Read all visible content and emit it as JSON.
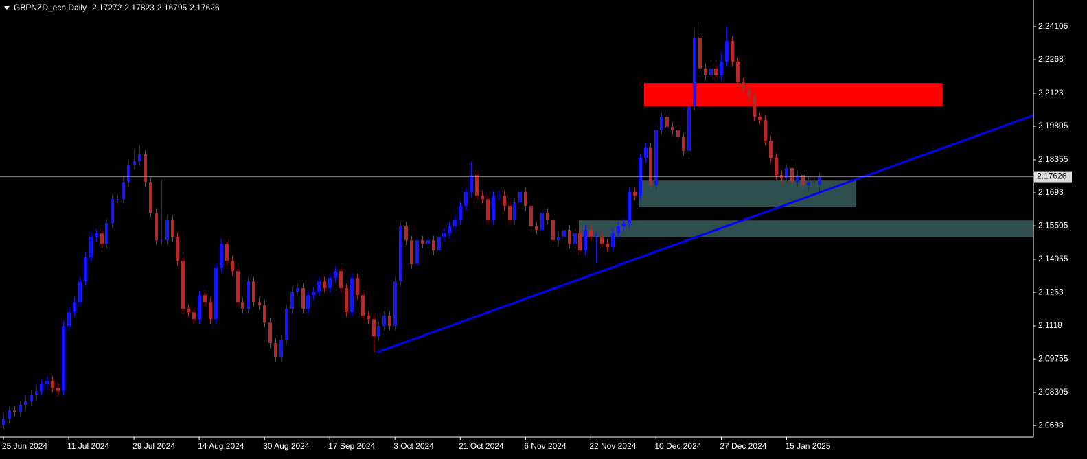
{
  "chart_data": {
    "type": "candlestick",
    "symbol": "GBPNZD_ecn,Daily",
    "up_color": "#1414ff",
    "down_color": "#b22a2a",
    "price_line_color": "#778899",
    "categories": [
      "25 Jun 2024",
      null,
      null,
      null,
      null,
      null,
      null,
      null,
      null,
      null,
      null,
      null,
      "11 Jul 2024",
      null,
      null,
      null,
      null,
      null,
      null,
      null,
      null,
      null,
      null,
      null,
      "29 Jul 2024",
      null,
      null,
      null,
      null,
      null,
      null,
      null,
      null,
      null,
      null,
      null,
      "14 Aug 2024",
      null,
      null,
      null,
      null,
      null,
      null,
      null,
      null,
      null,
      null,
      null,
      "30 Aug 2024",
      null,
      null,
      null,
      null,
      null,
      null,
      null,
      null,
      null,
      null,
      null,
      "17 Sep 2024",
      null,
      null,
      null,
      null,
      null,
      null,
      null,
      null,
      null,
      null,
      null,
      "3 Oct 2024",
      null,
      null,
      null,
      null,
      null,
      null,
      null,
      null,
      null,
      null,
      null,
      "21 Oct 2024",
      null,
      null,
      null,
      null,
      null,
      null,
      null,
      null,
      null,
      null,
      null,
      "6 Nov 2024",
      null,
      null,
      null,
      null,
      null,
      null,
      null,
      null,
      null,
      null,
      null,
      "22 Nov 2024",
      null,
      null,
      null,
      null,
      null,
      null,
      null,
      null,
      null,
      null,
      null,
      "10 Dec 2024",
      null,
      null,
      null,
      null,
      null,
      null,
      null,
      null,
      null,
      null,
      null,
      "27 Dec 2024",
      null,
      null,
      null,
      null,
      null,
      null,
      null,
      null,
      null,
      null,
      null,
      "15 Jan 2025",
      null,
      null,
      null,
      null,
      null,
      null
    ],
    "open": [
      2.069,
      2.0717,
      2.0753,
      2.0747,
      2.0777,
      2.0792,
      2.0821,
      2.0836,
      2.0866,
      2.088,
      2.0851,
      2.0836,
      2.1118,
      2.1177,
      2.1221,
      2.131,
      2.1414,
      2.1503,
      2.1518,
      2.1473,
      2.1562,
      2.1666,
      2.1666,
      2.174,
      2.1814,
      2.1829,
      2.1859,
      2.174,
      2.1607,
      2.1488,
      2.1488,
      2.1577,
      2.1503,
      2.1399,
      2.1192,
      2.1177,
      2.1147,
      2.1251,
      2.1221,
      2.1147,
      2.137,
      2.1473,
      2.1399,
      2.1355,
      2.1221,
      2.1192,
      2.131,
      2.1221,
      2.1207,
      2.1132,
      2.1044,
      2.0984,
      2.1058,
      2.1192,
      2.1266,
      2.1281,
      2.1192,
      2.1251,
      2.1266,
      2.131,
      2.1281,
      2.1325,
      2.1355,
      2.1281,
      2.1177,
      2.1325,
      2.1251,
      2.1162,
      2.1147,
      2.1073,
      2.1118,
      2.1162,
      2.1118,
      2.131,
      2.1548,
      2.1488,
      2.1385,
      2.1488,
      2.1473,
      2.1488,
      2.1444,
      2.1503,
      2.1518,
      2.1548,
      2.1577,
      2.1637,
      2.1696,
      2.177,
      2.1681,
      2.1666,
      2.1577,
      2.1681,
      2.1681,
      2.1637,
      2.1577,
      2.1651,
      2.1696,
      2.1637,
      2.1548,
      2.1533,
      2.1607,
      2.1577,
      2.1488,
      2.1503,
      2.1533,
      2.1473,
      2.1518,
      2.1444,
      2.1533,
      2.1503,
      2.1503,
      2.1473,
      2.1459,
      2.1518,
      2.1548,
      2.1562,
      2.1696,
      2.1681,
      2.1844,
      2.1889,
      2.1725,
      2.1963,
      2.2022,
      2.1978,
      2.1963,
      2.1933,
      2.1874,
      2.2067,
      2.2363,
      2.223,
      2.22,
      2.223,
      2.22,
      2.2259,
      2.2348,
      2.2259,
      2.217,
      2.2141,
      2.2111,
      2.2022,
      2.2007,
      2.1918,
      2.1844,
      2.177,
      2.1755,
      2.18,
      2.174,
      2.177,
      2.1725,
      2.174,
      2.17272
    ],
    "high": [
      2.0737,
      2.0773,
      2.0773,
      2.0797,
      2.0812,
      2.0841,
      2.0856,
      2.0886,
      2.09,
      2.09,
      2.0871,
      2.1138,
      2.1197,
      2.1241,
      2.133,
      2.1434,
      2.1523,
      2.1538,
      2.1538,
      2.1582,
      2.1686,
      2.1686,
      2.176,
      2.1834,
      2.188,
      2.19,
      2.1879,
      2.176,
      2.1627,
      2.1749,
      2.1597,
      2.1597,
      2.1523,
      2.1419,
      2.1212,
      2.1197,
      2.1271,
      2.1271,
      2.1241,
      2.139,
      2.1493,
      2.1493,
      2.1419,
      2.1375,
      2.1241,
      2.133,
      2.133,
      2.1241,
      2.1227,
      2.1152,
      2.1064,
      2.1078,
      2.1212,
      2.1286,
      2.1301,
      2.1301,
      2.1271,
      2.1286,
      2.133,
      2.133,
      2.1345,
      2.1375,
      2.1375,
      2.1301,
      2.1345,
      2.1345,
      2.1271,
      2.1182,
      2.1167,
      2.1138,
      2.1182,
      2.1182,
      2.133,
      2.1568,
      2.1568,
      2.1508,
      2.1508,
      2.1508,
      2.1508,
      2.1508,
      2.1523,
      2.1538,
      2.1568,
      2.1597,
      2.1657,
      2.1716,
      2.1829,
      2.179,
      2.1701,
      2.1686,
      2.1701,
      2.1701,
      2.1701,
      2.1657,
      2.1671,
      2.1716,
      2.1716,
      2.1657,
      2.1568,
      2.1627,
      2.1627,
      2.1597,
      2.1523,
      2.1553,
      2.1553,
      2.1538,
      2.1538,
      2.1553,
      2.1553,
      2.1523,
      2.1523,
      2.1493,
      2.1538,
      2.1568,
      2.1582,
      2.1716,
      2.1716,
      2.1864,
      2.1909,
      2.1909,
      2.1983,
      2.2042,
      2.2042,
      2.1998,
      2.1983,
      2.1953,
      2.2087,
      2.24,
      2.2422,
      2.225,
      2.225,
      2.225,
      2.23,
      2.241,
      2.2368,
      2.2279,
      2.219,
      2.2161,
      2.2131,
      2.2042,
      2.2027,
      2.1938,
      2.1864,
      2.179,
      2.182,
      2.182,
      2.179,
      2.179,
      2.176,
      2.176,
      2.17823
    ],
    "low": [
      2.067,
      2.0697,
      2.0727,
      2.0727,
      2.0757,
      2.0772,
      2.0801,
      2.0816,
      2.0846,
      2.0831,
      2.0816,
      2.0816,
      2.1098,
      2.1157,
      2.1201,
      2.129,
      2.1394,
      2.1483,
      2.1453,
      2.1453,
      2.1542,
      2.1646,
      2.1646,
      2.172,
      2.1794,
      2.1809,
      2.172,
      2.1587,
      2.1468,
      2.1468,
      2.1468,
      2.1483,
      2.1379,
      2.1172,
      2.1157,
      2.1127,
      2.1127,
      2.1201,
      2.1127,
      2.1127,
      2.135,
      2.1379,
      2.1335,
      2.1201,
      2.1172,
      2.1172,
      2.1201,
      2.1187,
      2.1112,
      2.1024,
      2.0964,
      2.0964,
      2.1038,
      2.1172,
      2.1246,
      2.1172,
      2.1172,
      2.1231,
      2.1246,
      2.1261,
      2.1261,
      2.1305,
      2.1261,
      2.1157,
      2.1157,
      2.1231,
      2.1142,
      2.1127,
      2.1005,
      2.1053,
      2.1098,
      2.1098,
      2.1098,
      2.129,
      2.1468,
      2.1365,
      2.1365,
      2.1453,
      2.1453,
      2.1424,
      2.1424,
      2.1483,
      2.1498,
      2.1528,
      2.1557,
      2.1617,
      2.1676,
      2.1661,
      2.1646,
      2.1557,
      2.1557,
      2.1661,
      2.1617,
      2.1557,
      2.1557,
      2.1631,
      2.1617,
      2.1528,
      2.1513,
      2.1513,
      2.1557,
      2.1468,
      2.1468,
      2.1483,
      2.1453,
      2.1453,
      2.1424,
      2.1424,
      2.1483,
      2.139,
      2.1453,
      2.1439,
      2.1439,
      2.1498,
      2.1528,
      2.1542,
      2.1661,
      2.1661,
      2.1824,
      2.1705,
      2.1705,
      2.1943,
      2.1958,
      2.1943,
      2.1913,
      2.1854,
      2.1854,
      2.2047,
      2.221,
      2.218,
      2.218,
      2.218,
      2.218,
      2.2239,
      2.2239,
      2.215,
      2.2121,
      2.2091,
      2.2002,
      2.1987,
      2.1898,
      2.1824,
      2.175,
      2.1735,
      2.1735,
      2.172,
      2.172,
      2.1705,
      2.1705,
      2.172,
      2.16795
    ],
    "close": [
      2.0717,
      2.0753,
      2.0747,
      2.0777,
      2.0792,
      2.0821,
      2.0836,
      2.0866,
      2.088,
      2.0851,
      2.0836,
      2.1118,
      2.1177,
      2.1221,
      2.131,
      2.1414,
      2.1503,
      2.1518,
      2.1473,
      2.1562,
      2.1666,
      2.1666,
      2.174,
      2.1814,
      2.1829,
      2.1859,
      2.174,
      2.1607,
      2.1488,
      2.1488,
      2.1577,
      2.1503,
      2.1399,
      2.1192,
      2.1177,
      2.1147,
      2.1251,
      2.1221,
      2.1147,
      2.137,
      2.1473,
      2.1399,
      2.1355,
      2.1221,
      2.1192,
      2.131,
      2.1221,
      2.1207,
      2.1132,
      2.1044,
      2.0984,
      2.1058,
      2.1192,
      2.1266,
      2.1281,
      2.1192,
      2.1251,
      2.1266,
      2.131,
      2.1281,
      2.1325,
      2.1355,
      2.1281,
      2.1177,
      2.1325,
      2.1251,
      2.1162,
      2.1147,
      2.1073,
      2.1118,
      2.1162,
      2.1118,
      2.131,
      2.1548,
      2.1488,
      2.1385,
      2.1488,
      2.1473,
      2.1488,
      2.1444,
      2.1503,
      2.1518,
      2.1548,
      2.1577,
      2.1637,
      2.1696,
      2.177,
      2.1681,
      2.1666,
      2.1577,
      2.1681,
      2.1681,
      2.1637,
      2.1577,
      2.1651,
      2.1696,
      2.1637,
      2.1548,
      2.1533,
      2.1607,
      2.1577,
      2.1488,
      2.1503,
      2.1533,
      2.1473,
      2.1518,
      2.1444,
      2.1533,
      2.1503,
      2.1503,
      2.1473,
      2.1459,
      2.1518,
      2.1548,
      2.1562,
      2.1696,
      2.1681,
      2.1844,
      2.1889,
      2.1725,
      2.1963,
      2.2022,
      2.1978,
      2.1963,
      2.1933,
      2.1874,
      2.2067,
      2.2363,
      2.223,
      2.22,
      2.223,
      2.22,
      2.2259,
      2.2348,
      2.2259,
      2.217,
      2.2141,
      2.2111,
      2.2022,
      2.2007,
      2.1918,
      2.1844,
      2.177,
      2.1755,
      2.18,
      2.174,
      2.177,
      2.1725,
      2.174,
      2.174,
      2.17626
    ],
    "xlim": [
      -0.63,
      189.4
    ],
    "ylim": [
      2.0638,
      2.2526
    ],
    "yticks": [
      2.24105,
      2.2268,
      2.2123,
      2.19805,
      2.18355,
      2.1693,
      2.15505,
      2.14055,
      2.1263,
      2.1118,
      2.09755,
      2.08305,
      2.0688
    ],
    "zones": [
      {
        "color": "#ff0000",
        "xlim": [
          117.8,
          172.7
        ],
        "ylim": [
          2.2067,
          2.2167
        ]
      },
      {
        "color": "#2f4f4f",
        "xlim": [
          116.8,
          156.8
        ],
        "ylim": [
          2.1631,
          2.1746
        ]
      },
      {
        "color": "#2f4f4f",
        "xlim": [
          105.8,
          189.4
        ],
        "ylim": [
          2.1503,
          2.1574
        ]
      }
    ],
    "trendline": {
      "color": "#0000ff",
      "x": [
        68.8,
        189.4
      ],
      "y": [
        2.1005,
        2.2028
      ]
    }
  }
}
